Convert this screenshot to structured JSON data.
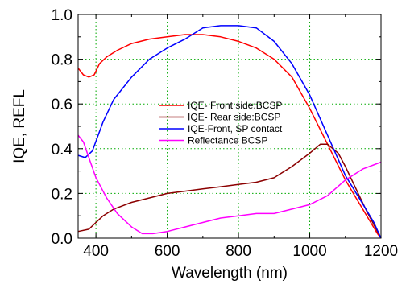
{
  "chart_data": {
    "type": "line",
    "xlabel": "Wavelength (nm)",
    "ylabel": "IQE, REFL",
    "xlim": [
      350,
      1200
    ],
    "ylim": [
      0.0,
      1.0
    ],
    "x_ticks": [
      400,
      600,
      800,
      1000,
      1200
    ],
    "y_ticks": [
      0.0,
      0.2,
      0.4,
      0.6,
      0.8,
      1.0
    ],
    "x_tick_labels": [
      "400",
      "600",
      "800",
      "1000",
      "1200"
    ],
    "y_tick_labels": [
      "0.0",
      "0.2",
      "0.4",
      "0.6",
      "0.8",
      "1.0"
    ],
    "grid": "dotted green, at every tick",
    "legend_position": "center",
    "series": [
      {
        "name": "IQE- Front side:BCSP",
        "color": "#ff0000",
        "points": [
          [
            350,
            0.76
          ],
          [
            365,
            0.73
          ],
          [
            380,
            0.72
          ],
          [
            395,
            0.73
          ],
          [
            410,
            0.78
          ],
          [
            430,
            0.81
          ],
          [
            460,
            0.84
          ],
          [
            500,
            0.87
          ],
          [
            550,
            0.89
          ],
          [
            600,
            0.9
          ],
          [
            650,
            0.91
          ],
          [
            700,
            0.91
          ],
          [
            750,
            0.9
          ],
          [
            800,
            0.88
          ],
          [
            850,
            0.85
          ],
          [
            900,
            0.8
          ],
          [
            950,
            0.72
          ],
          [
            1000,
            0.58
          ],
          [
            1050,
            0.42
          ],
          [
            1100,
            0.26
          ],
          [
            1130,
            0.18
          ],
          [
            1160,
            0.1
          ],
          [
            1190,
            0.02
          ],
          [
            1200,
            0.0
          ]
        ]
      },
      {
        "name": "IQE- Rear side:BCSP",
        "color": "#8b0000",
        "points": [
          [
            350,
            0.03
          ],
          [
            380,
            0.04
          ],
          [
            400,
            0.07
          ],
          [
            420,
            0.1
          ],
          [
            450,
            0.13
          ],
          [
            500,
            0.16
          ],
          [
            550,
            0.18
          ],
          [
            600,
            0.2
          ],
          [
            650,
            0.21
          ],
          [
            700,
            0.22
          ],
          [
            750,
            0.23
          ],
          [
            800,
            0.24
          ],
          [
            850,
            0.25
          ],
          [
            900,
            0.27
          ],
          [
            950,
            0.32
          ],
          [
            1000,
            0.38
          ],
          [
            1030,
            0.42
          ],
          [
            1050,
            0.42
          ],
          [
            1080,
            0.38
          ],
          [
            1100,
            0.32
          ],
          [
            1130,
            0.22
          ],
          [
            1160,
            0.12
          ],
          [
            1190,
            0.03
          ],
          [
            1200,
            0.0
          ]
        ]
      },
      {
        "name": "IQE-Front, SP contact",
        "color": "#0000ff",
        "points": [
          [
            350,
            0.37
          ],
          [
            370,
            0.36
          ],
          [
            390,
            0.39
          ],
          [
            420,
            0.52
          ],
          [
            450,
            0.62
          ],
          [
            500,
            0.72
          ],
          [
            550,
            0.8
          ],
          [
            600,
            0.85
          ],
          [
            650,
            0.89
          ],
          [
            700,
            0.94
          ],
          [
            750,
            0.95
          ],
          [
            800,
            0.95
          ],
          [
            850,
            0.94
          ],
          [
            900,
            0.88
          ],
          [
            950,
            0.78
          ],
          [
            1000,
            0.64
          ],
          [
            1050,
            0.46
          ],
          [
            1100,
            0.28
          ],
          [
            1150,
            0.15
          ],
          [
            1180,
            0.07
          ],
          [
            1200,
            0.0
          ]
        ]
      },
      {
        "name": "Reflectance BCSP",
        "color": "#ff00ff",
        "points": [
          [
            350,
            0.46
          ],
          [
            365,
            0.43
          ],
          [
            380,
            0.36
          ],
          [
            400,
            0.27
          ],
          [
            430,
            0.18
          ],
          [
            460,
            0.11
          ],
          [
            500,
            0.05
          ],
          [
            530,
            0.02
          ],
          [
            560,
            0.02
          ],
          [
            600,
            0.03
          ],
          [
            650,
            0.05
          ],
          [
            700,
            0.07
          ],
          [
            750,
            0.09
          ],
          [
            800,
            0.1
          ],
          [
            850,
            0.11
          ],
          [
            900,
            0.11
          ],
          [
            950,
            0.13
          ],
          [
            1000,
            0.15
          ],
          [
            1050,
            0.19
          ],
          [
            1100,
            0.26
          ],
          [
            1150,
            0.31
          ],
          [
            1200,
            0.34
          ]
        ]
      }
    ]
  }
}
